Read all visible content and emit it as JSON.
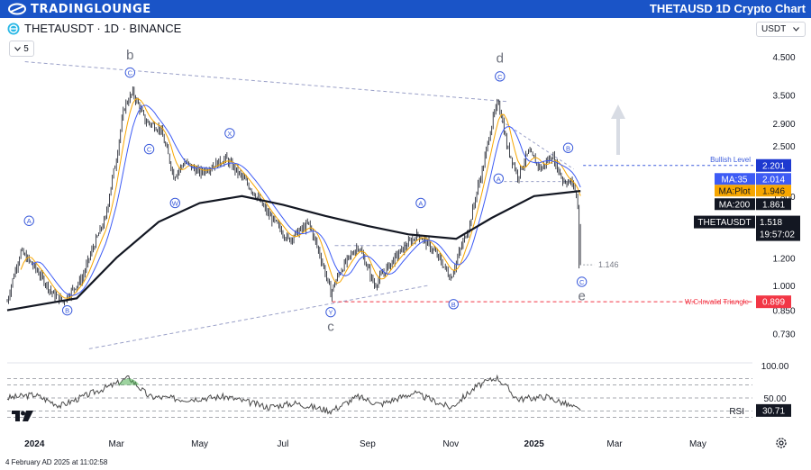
{
  "header": {
    "logo_text": "TRADINGLOUNGE",
    "chart_title": "THETAUSD 1D Crypto Chart"
  },
  "symbol": {
    "label": "THETAUSDT · 1D · BINANCE",
    "indicator_count": "5",
    "currency": "USDT"
  },
  "timestamp": "4 February AD 2025 at 11:02:58",
  "icons": {
    "logo": "tradinglounge-logo-icon",
    "symbol": "theta-coin-icon",
    "watermark": "tradingview-logo-icon",
    "settings": "gear-icon",
    "dropdown": "chevron-down-icon",
    "up_arrow": "up-arrow-icon"
  },
  "colors": {
    "banner": "#1a54c7",
    "price": "#131722",
    "ma_plot": "#f7a600",
    "ma35": "#3d5bf5",
    "ma200": "#131722",
    "invalid": "#f23645",
    "rsi": "#4a4a4a",
    "rsi_overbought": "#4caf50",
    "wave_label": "#3b5bdb"
  },
  "chart_data": [
    {
      "type": "candlestick",
      "symbol": "THETAUSDT",
      "interval": "1D",
      "exchange": "BINANCE",
      "y_scale": "log",
      "ylim": [
        0.62,
        5.0
      ],
      "x_range": [
        "2023-12-12",
        "2025-06-10"
      ],
      "y_ticks": [
        "4.500",
        "3.500",
        "2.900",
        "2.500",
        "1.800",
        "1.200",
        "1.000",
        "0.850",
        "0.730"
      ],
      "x_ticks": [
        "2024",
        "Mar",
        "May",
        "Jul",
        "Sep",
        "Nov",
        "2025",
        "Mar",
        "May"
      ],
      "price_path": [
        [
          "2023-12-12",
          0.9
        ],
        [
          "2023-12-22",
          1.25
        ],
        [
          "2024-01-03",
          1.1
        ],
        [
          "2024-01-14",
          0.95
        ],
        [
          "2024-01-22",
          0.9
        ],
        [
          "2024-02-05",
          1.05
        ],
        [
          "2024-02-22",
          1.55
        ],
        [
          "2024-03-01",
          2.3
        ],
        [
          "2024-03-07",
          3.25
        ],
        [
          "2024-03-13",
          3.55
        ],
        [
          "2024-03-22",
          2.95
        ],
        [
          "2024-04-02",
          2.8
        ],
        [
          "2024-04-12",
          2.05
        ],
        [
          "2024-04-20",
          2.25
        ],
        [
          "2024-05-01",
          2.1
        ],
        [
          "2024-05-20",
          2.3
        ],
        [
          "2024-06-05",
          1.95
        ],
        [
          "2024-06-20",
          1.6
        ],
        [
          "2024-07-05",
          1.35
        ],
        [
          "2024-07-20",
          1.5
        ],
        [
          "2024-08-05",
          0.95
        ],
        [
          "2024-08-12",
          1.1
        ],
        [
          "2024-08-25",
          1.3
        ],
        [
          "2024-09-06",
          1.0
        ],
        [
          "2024-09-25",
          1.25
        ],
        [
          "2024-10-08",
          1.4
        ],
        [
          "2024-10-20",
          1.25
        ],
        [
          "2024-11-01",
          1.05
        ],
        [
          "2024-11-06",
          1.2
        ],
        [
          "2024-11-15",
          1.5
        ],
        [
          "2024-11-25",
          2.2
        ],
        [
          "2024-12-02",
          3.0
        ],
        [
          "2024-12-06",
          3.35
        ],
        [
          "2024-12-12",
          2.5
        ],
        [
          "2024-12-20",
          2.05
        ],
        [
          "2024-12-28",
          2.4
        ],
        [
          "2025-01-06",
          2.15
        ],
        [
          "2025-01-14",
          2.35
        ],
        [
          "2025-01-22",
          2.0
        ],
        [
          "2025-01-30",
          1.95
        ],
        [
          "2025-02-02",
          1.7
        ],
        [
          "2025-02-03",
          1.146
        ],
        [
          "2025-02-04",
          1.518
        ]
      ],
      "moving_averages": [
        {
          "name": "MA:35",
          "value": "2.014"
        },
        {
          "name": "MA:Plot",
          "value": "1.946"
        },
        {
          "name": "MA:200",
          "value": "1.861"
        }
      ],
      "ma200_path": [
        [
          "2023-12-12",
          0.85
        ],
        [
          "2024-02-01",
          0.92
        ],
        [
          "2024-03-01",
          1.2
        ],
        [
          "2024-04-01",
          1.52
        ],
        [
          "2024-05-01",
          1.72
        ],
        [
          "2024-06-01",
          1.8
        ],
        [
          "2024-07-01",
          1.7
        ],
        [
          "2024-08-01",
          1.58
        ],
        [
          "2024-09-01",
          1.48
        ],
        [
          "2024-10-01",
          1.4
        ],
        [
          "2024-11-05",
          1.36
        ],
        [
          "2024-12-01",
          1.56
        ],
        [
          "2025-01-01",
          1.8
        ],
        [
          "2025-02-04",
          1.861
        ]
      ],
      "price_labels": [
        {
          "label": "",
          "value": "2.201",
          "price": 2.201
        },
        {
          "label": "THETAUSDT",
          "value": "1.518",
          "countdown": "19:57:02",
          "price": 1.518
        },
        {
          "label": "",
          "value": "0.899",
          "price": 0.899
        }
      ],
      "levels": [
        {
          "text": "Bullish Level",
          "price": 2.201
        },
        {
          "text": "W.C.Invalid Triangle",
          "price": 0.899
        }
      ],
      "annotations": {
        "low_marker": "1.146",
        "big_wave_labels": [
          "b",
          "c",
          "d",
          "e"
        ],
        "circle_labels": [
          "A",
          "B",
          "C",
          "C",
          "X",
          "W",
          "A",
          "Y",
          "B",
          "C",
          "A",
          "B",
          "C"
        ]
      }
    },
    {
      "type": "line",
      "name": "RSI",
      "value": "30.71",
      "ylim": [
        0,
        100
      ],
      "y_ticks": [
        "100.00",
        "50.00"
      ],
      "levels": [
        80,
        70,
        50,
        30,
        20
      ],
      "overbought_peak": [
        "2024-03-10",
        82
      ],
      "rsi_path": [
        [
          "2023-12-12",
          50
        ],
        [
          "2024-01-01",
          55
        ],
        [
          "2024-01-20",
          38
        ],
        [
          "2024-02-15",
          60
        ],
        [
          "2024-03-01",
          72
        ],
        [
          "2024-03-10",
          82
        ],
        [
          "2024-03-25",
          52
        ],
        [
          "2024-04-20",
          48
        ],
        [
          "2024-05-20",
          52
        ],
        [
          "2024-06-20",
          36
        ],
        [
          "2024-07-10",
          42
        ],
        [
          "2024-08-05",
          30
        ],
        [
          "2024-08-25",
          52
        ],
        [
          "2024-09-10",
          40
        ],
        [
          "2024-10-05",
          58
        ],
        [
          "2024-11-01",
          35
        ],
        [
          "2024-11-20",
          68
        ],
        [
          "2024-12-05",
          82
        ],
        [
          "2024-12-20",
          48
        ],
        [
          "2025-01-10",
          52
        ],
        [
          "2025-01-25",
          40
        ],
        [
          "2025-02-04",
          30.71
        ]
      ]
    }
  ]
}
